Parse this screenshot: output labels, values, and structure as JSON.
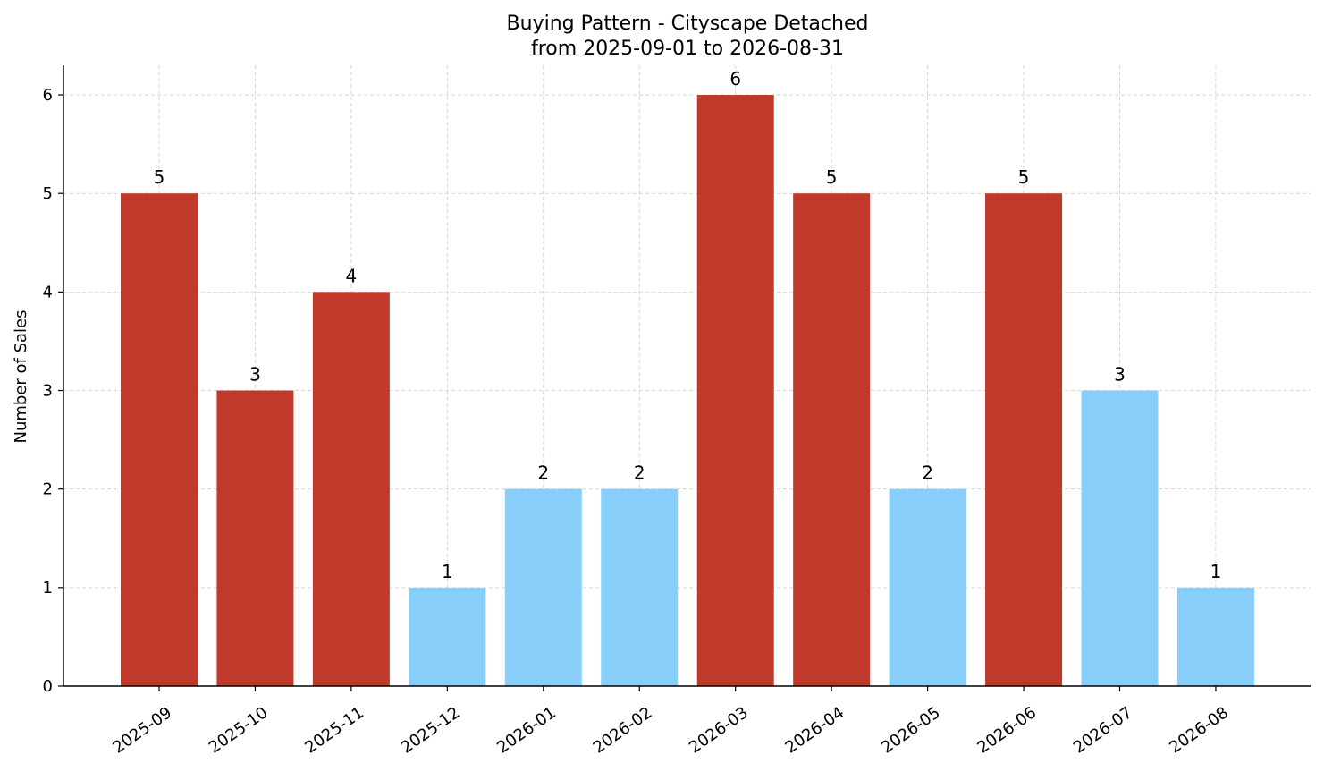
{
  "chart_data": {
    "type": "bar",
    "title": "Buying Pattern - Cityscape Detached",
    "subtitle": "from 2025-09-01 to 2026-08-31",
    "xlabel": "",
    "ylabel": "Number of Sales",
    "categories": [
      "2025-09",
      "2025-10",
      "2025-11",
      "2025-12",
      "2026-01",
      "2026-02",
      "2026-03",
      "2026-04",
      "2026-05",
      "2026-06",
      "2026-07",
      "2026-08"
    ],
    "values": [
      5,
      3,
      4,
      1,
      2,
      2,
      6,
      5,
      2,
      5,
      3,
      1
    ],
    "bar_colors": [
      "#c0392b",
      "#c0392b",
      "#c0392b",
      "#87cefa",
      "#87cefa",
      "#87cefa",
      "#c0392b",
      "#c0392b",
      "#87cefa",
      "#c0392b",
      "#87cefa",
      "#87cefa"
    ],
    "yticks": [
      0,
      1,
      2,
      3,
      4,
      5,
      6
    ],
    "ylim": [
      0,
      6.3
    ],
    "grid": true,
    "legend": "none"
  }
}
